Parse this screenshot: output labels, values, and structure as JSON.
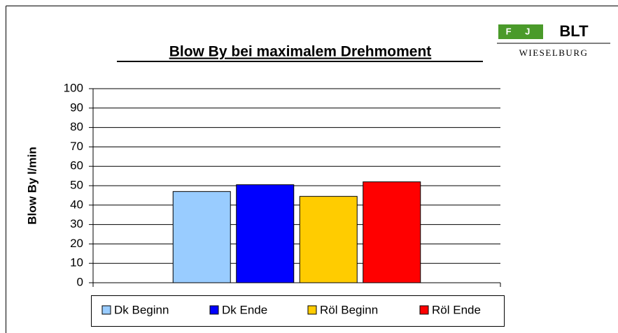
{
  "chart_data": {
    "type": "bar",
    "title": "Blow By bei maximalem Drehmoment",
    "y_label": "Blow By l/min",
    "logo": {
      "badge": "F J",
      "name": "BLT",
      "subtitle": "WIESELBURG"
    },
    "categories": [
      null
    ],
    "series": [
      {
        "name": "Dk Beginn",
        "color": "#99ccff",
        "values": [
          47
        ]
      },
      {
        "name": "Dk Ende",
        "color": "#0000ff",
        "values": [
          50.5
        ]
      },
      {
        "name": "Röl Beginn",
        "color": "#ffcc00",
        "values": [
          44.5
        ]
      },
      {
        "name": "Röl Ende",
        "color": "#ff0000",
        "values": [
          52
        ]
      }
    ],
    "ylim": [
      0,
      100
    ],
    "yticks": [
      0,
      10,
      20,
      30,
      40,
      50,
      60,
      70,
      80,
      90,
      100
    ],
    "grid": true,
    "legend": "bottom"
  }
}
